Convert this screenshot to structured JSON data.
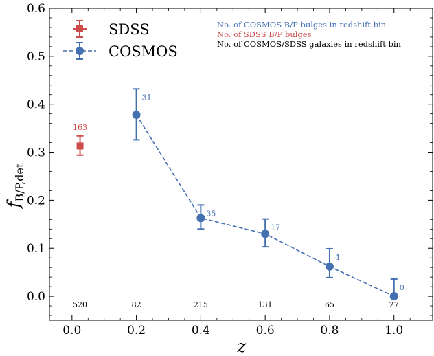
{
  "chart_data": {
    "type": "scatter",
    "xlabel": "z",
    "ylabel_main": "f",
    "ylabel_sub": "B/P,det",
    "xlim": [
      -0.07,
      1.12
    ],
    "ylim": [
      -0.05,
      0.6
    ],
    "xticks": [
      0.0,
      0.2,
      0.4,
      0.6,
      0.8,
      1.0
    ],
    "xtick_labels": [
      "0.0",
      "0.2",
      "0.4",
      "0.6",
      "0.8",
      "1.0"
    ],
    "yticks": [
      0.0,
      0.1,
      0.2,
      0.3,
      0.4,
      0.5,
      0.6
    ],
    "ytick_labels": [
      "0.0",
      "0.1",
      "0.2",
      "0.3",
      "0.4",
      "0.5",
      "0.6"
    ],
    "grid": false,
    "legend_position": "top-left",
    "series": [
      {
        "name": "SDSS",
        "color": "#cc4c4c",
        "marker": "square",
        "linestyle": "none",
        "points": [
          {
            "x": 0.025,
            "y": 0.313,
            "yerr_low": 0.019,
            "yerr_high": 0.021,
            "count_label": "163"
          }
        ]
      },
      {
        "name": "COSMOS",
        "color": "#4470b0",
        "marker": "circle",
        "linestyle": "dashed",
        "points": [
          {
            "x": 0.2,
            "y": 0.378,
            "yerr_low": 0.052,
            "yerr_high": 0.054,
            "count_label": "31"
          },
          {
            "x": 0.4,
            "y": 0.163,
            "yerr_low": 0.023,
            "yerr_high": 0.027,
            "count_label": "35"
          },
          {
            "x": 0.6,
            "y": 0.13,
            "yerr_low": 0.027,
            "yerr_high": 0.031,
            "count_label": "17"
          },
          {
            "x": 0.8,
            "y": 0.062,
            "yerr_low": 0.023,
            "yerr_high": 0.037,
            "count_label": "4"
          },
          {
            "x": 1.0,
            "y": 0.0,
            "yerr_low": 0.0,
            "yerr_high": 0.036,
            "count_label": "0"
          }
        ]
      }
    ],
    "galaxy_counts": [
      {
        "x": 0.025,
        "label": "520"
      },
      {
        "x": 0.2,
        "label": "82"
      },
      {
        "x": 0.4,
        "label": "215"
      },
      {
        "x": 0.6,
        "label": "131"
      },
      {
        "x": 0.8,
        "label": "65"
      },
      {
        "x": 1.0,
        "label": "27"
      }
    ],
    "galaxy_counts_y": -0.023,
    "notes": [
      {
        "text": "No. of COSMOS B/P bulges in redshift bin",
        "color": "#4470b0"
      },
      {
        "text": "No. of SDSS B/P bulges",
        "color": "#cc4c4c"
      },
      {
        "text": "No. of COSMOS/SDSS galaxies in redshift bin",
        "color": "#000000"
      }
    ]
  }
}
